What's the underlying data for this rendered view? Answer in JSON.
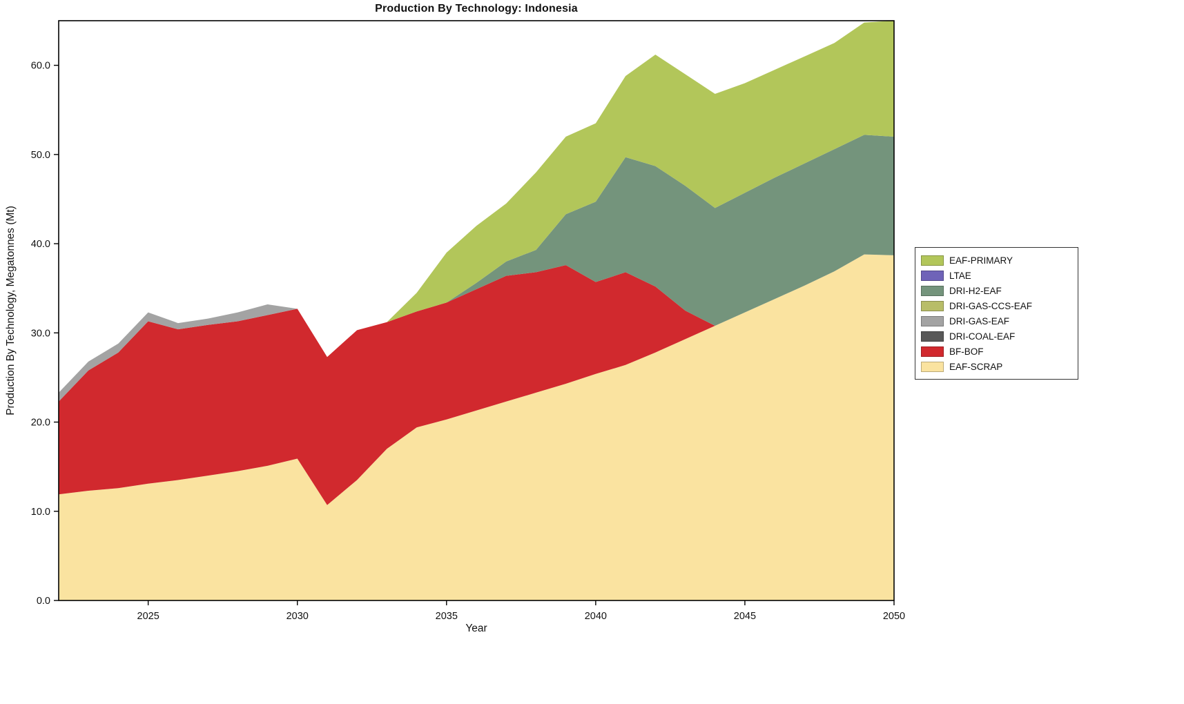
{
  "title": "Production By Technology: Indonesia",
  "axes": {
    "xlabel": "Year",
    "ylabel": "Production By Technology, Megatonnes (Mt)",
    "xticks": [
      2025,
      2030,
      2035,
      2040,
      2045,
      2050
    ],
    "xtick_labels": [
      "2025",
      "2030",
      "2035",
      "2040",
      "2045",
      "2050"
    ],
    "yticks": [
      0,
      10,
      20,
      30,
      40,
      50,
      60
    ],
    "ytick_labels": [
      "0.0",
      "10.0",
      "20.0",
      "30.0",
      "40.0",
      "50.0",
      "60.0"
    ]
  },
  "chart_data": {
    "type": "area",
    "stacked": true,
    "title": "Production By Technology: Indonesia",
    "xlabel": "Year",
    "ylabel": "Production By Technology, Megatonnes (Mt)",
    "x_range": [
      2022,
      2050
    ],
    "ylim": [
      0,
      65
    ],
    "grid": false,
    "legend_position": "right",
    "x": [
      2022,
      2023,
      2024,
      2025,
      2026,
      2027,
      2028,
      2029,
      2030,
      2031,
      2032,
      2033,
      2034,
      2035,
      2036,
      2037,
      2038,
      2039,
      2040,
      2041,
      2042,
      2043,
      2044,
      2045,
      2046,
      2047,
      2048,
      2049,
      2050
    ],
    "stack_order": [
      "EAF-SCRAP",
      "BF-BOF",
      "DRI-COAL-EAF",
      "DRI-GAS-EAF",
      "DRI-GAS-CCS-EAF",
      "DRI-H2-EAF",
      "LTAE",
      "EAF-PRIMARY"
    ],
    "series": [
      {
        "name": "EAF-SCRAP",
        "values": [
          11.9,
          12.3,
          12.6,
          13.1,
          13.5,
          14.0,
          14.5,
          15.1,
          15.9,
          10.7,
          13.5,
          17.0,
          19.4,
          20.3,
          21.3,
          22.3,
          23.3,
          24.3,
          25.4,
          26.4,
          27.8,
          29.3,
          30.8,
          32.3,
          33.8,
          35.3,
          36.9,
          38.8,
          38.7
        ]
      },
      {
        "name": "BF-BOF",
        "values": [
          10.4,
          13.5,
          15.2,
          18.2,
          16.9,
          16.9,
          16.8,
          16.9,
          16.8,
          16.6,
          16.8,
          14.2,
          13.0,
          13.1,
          13.6,
          14.1,
          13.5,
          13.3,
          10.3,
          10.4,
          7.4,
          3.2,
          0,
          0,
          0,
          0,
          0,
          0,
          0
        ]
      },
      {
        "name": "DRI-COAL-EAF",
        "values": [
          0,
          0,
          0,
          0,
          0,
          0,
          0,
          0,
          0,
          0,
          0,
          0,
          0,
          0,
          0,
          0,
          0,
          0,
          0,
          0,
          0,
          0,
          0,
          0,
          0,
          0,
          0,
          0,
          0
        ]
      },
      {
        "name": "DRI-GAS-EAF",
        "values": [
          1.0,
          1.0,
          1.0,
          1.0,
          0.7,
          0.7,
          1.0,
          1.2,
          0,
          0,
          0,
          0,
          0,
          0,
          0,
          0,
          0,
          0,
          0,
          0,
          0,
          0,
          0,
          0,
          0,
          0,
          0,
          0,
          0
        ]
      },
      {
        "name": "DRI-GAS-CCS-EAF",
        "values": [
          0,
          0,
          0,
          0,
          0,
          0,
          0,
          0,
          0,
          0,
          0,
          0,
          0,
          0,
          0,
          0,
          0,
          0,
          0,
          0,
          0,
          0,
          0,
          0,
          0,
          0,
          0,
          0,
          0
        ]
      },
      {
        "name": "DRI-H2-EAF",
        "values": [
          0,
          0,
          0,
          0,
          0,
          0,
          0,
          0,
          0,
          0,
          0,
          0,
          0,
          0,
          0.7,
          1.6,
          2.5,
          5.7,
          9.0,
          12.9,
          13.5,
          14.0,
          13.2,
          13.4,
          13.6,
          13.7,
          13.7,
          13.4,
          13.3
        ]
      },
      {
        "name": "LTAE",
        "values": [
          0,
          0,
          0,
          0,
          0,
          0,
          0,
          0,
          0,
          0,
          0,
          0,
          0,
          0,
          0,
          0,
          0,
          0,
          0,
          0,
          0,
          0,
          0,
          0,
          0,
          0,
          0,
          0,
          0
        ]
      },
      {
        "name": "EAF-PRIMARY",
        "values": [
          0,
          0,
          0,
          0,
          0,
          0,
          0,
          0,
          0,
          0,
          0,
          0,
          2.1,
          5.6,
          6.4,
          6.5,
          8.7,
          8.7,
          8.8,
          9.1,
          12.5,
          12.5,
          12.8,
          12.3,
          12.1,
          12.0,
          11.9,
          12.6,
          13.0
        ]
      }
    ],
    "colors": {
      "EAF-PRIMARY": "#b2c65a",
      "LTAE": "#6f63b8",
      "DRI-H2-EAF": "#74947c",
      "DRI-GAS-CCS-EAF": "#b8bd68",
      "DRI-GAS-EAF": "#a3a3a3",
      "DRI-COAL-EAF": "#595959",
      "BF-BOF": "#d1292e",
      "EAF-SCRAP": "#fae3a0"
    },
    "legend": {
      "entries": [
        "EAF-PRIMARY",
        "LTAE",
        "DRI-H2-EAF",
        "DRI-GAS-CCS-EAF",
        "DRI-GAS-EAF",
        "DRI-COAL-EAF",
        "BF-BOF",
        "EAF-SCRAP"
      ]
    }
  }
}
